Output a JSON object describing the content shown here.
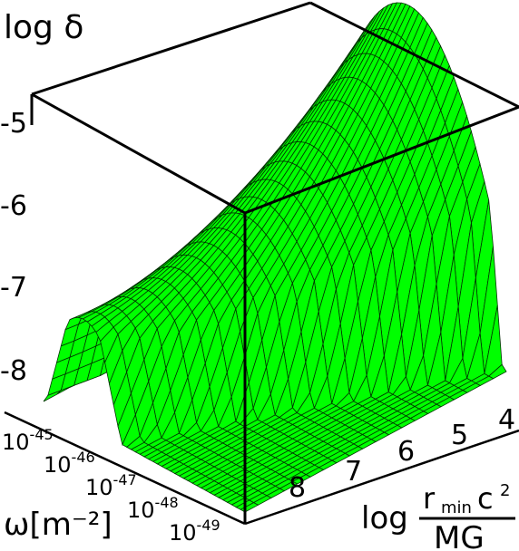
{
  "chart_data": {
    "type": "surface3d",
    "title": "",
    "zlabel": "log δ",
    "ylabel": "ω[m⁻²]",
    "xlabel_prefix": "log",
    "xlabel_numerator": "r",
    "xlabel_numerator_sub": "min",
    "xlabel_numerator_rest": "c",
    "xlabel_numerator_sup": "2",
    "xlabel_denominator": "MG",
    "surface_color": "#00ff00",
    "mesh_color": "#003300",
    "z_ticks": [
      {
        "value": -5,
        "label": "-5"
      },
      {
        "value": -6,
        "label": "-6"
      },
      {
        "value": -7,
        "label": "-7"
      },
      {
        "value": -8,
        "label": "-8"
      }
    ],
    "x_ticks": [
      {
        "value": 8,
        "label": "8"
      },
      {
        "value": 7,
        "label": "7"
      },
      {
        "value": 6,
        "label": "6"
      },
      {
        "value": 5,
        "label": "5"
      },
      {
        "value": 4,
        "label": "4"
      }
    ],
    "y_ticks": [
      {
        "value": -45,
        "base": "10",
        "exp": "-45"
      },
      {
        "value": -46,
        "base": "10",
        "exp": "-46"
      },
      {
        "value": -47,
        "base": "10",
        "exp": "-47"
      },
      {
        "value": -48,
        "base": "10",
        "exp": "-48"
      },
      {
        "value": -49,
        "base": "10",
        "exp": "-49"
      }
    ]
  }
}
